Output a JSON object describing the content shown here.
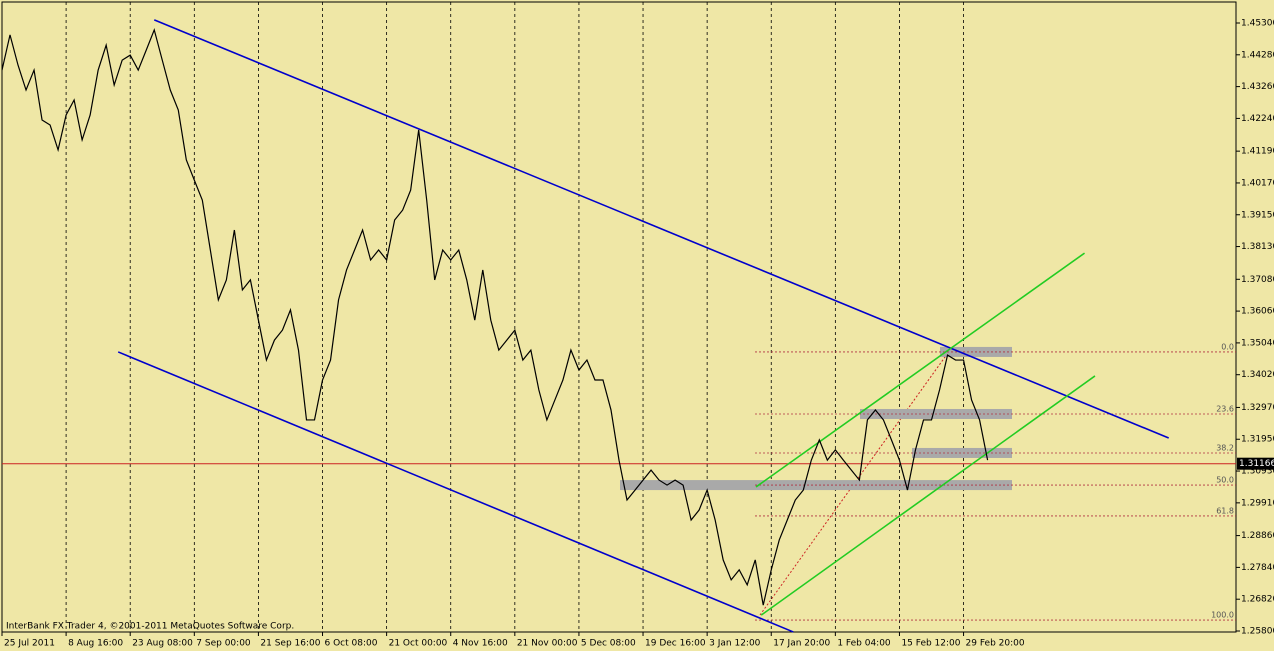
{
  "chart_data": {
    "type": "line",
    "footer": "InterBank FX Trader 4, ©2001-2011 MetaQuotes Software Corp.",
    "xlim": [
      0,
      154
    ],
    "ylim": [
      1.258,
      1.453
    ],
    "xticks": [
      {
        "value": 0,
        "label": "25 Jul 2011"
      },
      {
        "value": 8,
        "label": "8 Aug 16:00"
      },
      {
        "value": 16,
        "label": "23 Aug 08:00"
      },
      {
        "value": 24,
        "label": "7 Sep 00:00"
      },
      {
        "value": 32,
        "label": "21 Sep 16:00"
      },
      {
        "value": 40,
        "label": "6 Oct 08:00"
      },
      {
        "value": 48,
        "label": "21 Oct 00:00"
      },
      {
        "value": 56,
        "label": "4 Nov 16:00"
      },
      {
        "value": 64,
        "label": "21 Nov 00:00"
      },
      {
        "value": 72,
        "label": "5 Dec 08:00"
      },
      {
        "value": 80,
        "label": "19 Dec 16:00"
      },
      {
        "value": 88,
        "label": "3 Jan 12:00"
      },
      {
        "value": 96,
        "label": "17 Jan 20:00"
      },
      {
        "value": 104,
        "label": "1 Feb 04:00"
      },
      {
        "value": 112,
        "label": "15 Feb 12:00"
      },
      {
        "value": 120,
        "label": "29 Feb 20:00"
      }
    ],
    "yticks": [
      {
        "value": 1.453,
        "label": "1.45300"
      },
      {
        "value": 1.4428,
        "label": "1.44280"
      },
      {
        "value": 1.4326,
        "label": "1.43260"
      },
      {
        "value": 1.4224,
        "label": "1.42240"
      },
      {
        "value": 1.4119,
        "label": "1.41190"
      },
      {
        "value": 1.4017,
        "label": "1.40170"
      },
      {
        "value": 1.3915,
        "label": "1.39150"
      },
      {
        "value": 1.3813,
        "label": "1.38130"
      },
      {
        "value": 1.3708,
        "label": "1.37080"
      },
      {
        "value": 1.3606,
        "label": "1.36060"
      },
      {
        "value": 1.3504,
        "label": "1.35040"
      },
      {
        "value": 1.3402,
        "label": "1.34020"
      },
      {
        "value": 1.3297,
        "label": "1.32970"
      },
      {
        "value": 1.3195,
        "label": "1.31950"
      },
      {
        "value": 1.3093,
        "label": "1.30930"
      },
      {
        "value": 1.2991,
        "label": "1.29910"
      },
      {
        "value": 1.2886,
        "label": "1.28860"
      },
      {
        "value": 1.2784,
        "label": "1.27840"
      },
      {
        "value": 1.2682,
        "label": "1.26820"
      },
      {
        "value": 1.258,
        "label": "1.25800"
      }
    ],
    "grid": true,
    "series": [
      {
        "color": "#000000",
        "values": [
          1.4379,
          1.4492,
          1.4395,
          1.4315,
          1.4379,
          1.4219,
          1.4203,
          1.4123,
          1.4235,
          1.4283,
          1.4155,
          1.4235,
          1.4379,
          1.4459,
          1.4331,
          1.4411,
          1.4427,
          1.4379,
          1.4443,
          1.4508,
          1.4411,
          1.4315,
          1.4251,
          1.4091,
          1.4026,
          1.3962,
          1.3802,
          1.3642,
          1.3706,
          1.3866,
          1.3674,
          1.3706,
          1.3577,
          1.3449,
          1.3513,
          1.3545,
          1.361,
          1.3481,
          1.3257,
          1.3257,
          1.3385,
          1.3449,
          1.3642,
          1.3738,
          1.3802,
          1.3866,
          1.377,
          1.3802,
          1.377,
          1.3898,
          1.393,
          1.3994,
          1.4187,
          1.3962,
          1.3706,
          1.3802,
          1.377,
          1.3802,
          1.3706,
          1.3577,
          1.3738,
          1.3577,
          1.3481,
          1.3513,
          1.3545,
          1.3449,
          1.3481,
          1.3353,
          1.3257,
          1.3321,
          1.3385,
          1.3481,
          1.3417,
          1.3449,
          1.3385,
          1.3385,
          1.3289,
          1.3128,
          1.3,
          1.3032,
          1.3064,
          1.3096,
          1.3064,
          1.3048,
          1.3064,
          1.3048,
          1.2936,
          1.2968,
          1.3032,
          1.2936,
          1.2808,
          1.2744,
          1.2776,
          1.2728,
          1.2808,
          1.2663,
          1.2776,
          1.2872,
          1.2936,
          1.3,
          1.3032,
          1.3128,
          1.3193,
          1.3128,
          1.3161,
          1.3128,
          1.3096,
          1.3064,
          1.3257,
          1.3289,
          1.3257,
          1.3193,
          1.3128,
          1.3032,
          1.3161,
          1.3257,
          1.3257,
          1.3353,
          1.3465,
          1.3449,
          1.3449,
          1.3321,
          1.3257,
          1.3128
        ]
      }
    ],
    "trendlines": [
      {
        "color": "#0000cc",
        "x": [
          19,
          145.6
        ],
        "y": [
          1.454,
          1.3199
        ]
      },
      {
        "color": "#0000cc",
        "x": [
          14.5,
          98.75
        ],
        "y": [
          1.3475,
          1.2577
        ]
      },
      {
        "color": "#22cc22",
        "x": [
          94.1,
          135.1
        ],
        "y": [
          1.3042,
          1.3792
        ]
      },
      {
        "color": "#22cc22",
        "x": [
          94.75,
          136.4
        ],
        "y": [
          1.2631,
          1.3398
        ]
      }
    ],
    "fib_levels": [
      {
        "label": "0.0",
        "price": 1.3475
      },
      {
        "label": "23.6",
        "price": 1.3276
      },
      {
        "label": "38.2",
        "price": 1.3151
      },
      {
        "label": "50.0",
        "price": 1.3048
      },
      {
        "label": "61.8",
        "price": 1.2949
      },
      {
        "label": "100.0",
        "price": 1.2615
      }
    ],
    "last_price": {
      "value": 1.31166,
      "label": "1.31166"
    }
  }
}
